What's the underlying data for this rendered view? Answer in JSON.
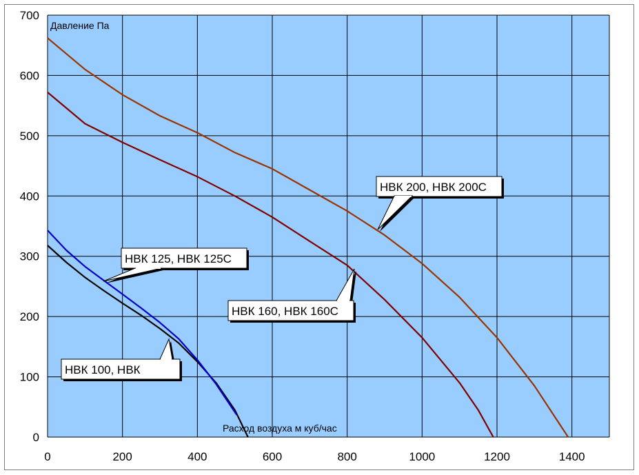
{
  "chart_data": {
    "type": "line",
    "title": "",
    "xlabel": "Расход воздуха м куб/час",
    "ylabel": "Давление Па",
    "xlim": [
      0,
      1500
    ],
    "ylim": [
      0,
      700
    ],
    "x_ticks": [
      "0",
      "200",
      "400",
      "600",
      "800",
      "1000",
      "1200",
      "1400"
    ],
    "y_ticks": [
      "0",
      "100",
      "200",
      "300",
      "400",
      "500",
      "600",
      "700"
    ],
    "grid": true,
    "legend": "callouts",
    "colors": {
      "plot_background": "#99ccff",
      "grid": "#000000"
    },
    "series": [
      {
        "name": "НВК 100, НВК",
        "color": "#000000",
        "points": [
          [
            0,
            318
          ],
          [
            50,
            290
          ],
          [
            100,
            265
          ],
          [
            150,
            243
          ],
          [
            200,
            222
          ],
          [
            250,
            202
          ],
          [
            300,
            180
          ],
          [
            350,
            156
          ],
          [
            400,
            125
          ],
          [
            450,
            90
          ],
          [
            500,
            45
          ],
          [
            535,
            0
          ]
        ]
      },
      {
        "name": "НВК 125, НВК 125С",
        "color": "#0000cc",
        "points": [
          [
            0,
            343
          ],
          [
            50,
            310
          ],
          [
            100,
            283
          ],
          [
            150,
            260
          ],
          [
            200,
            237
          ],
          [
            250,
            214
          ],
          [
            300,
            190
          ],
          [
            350,
            163
          ],
          [
            400,
            128
          ],
          [
            450,
            88
          ],
          [
            480,
            60
          ],
          [
            505,
            37
          ]
        ]
      },
      {
        "name": "НВК 160, НВК 160С",
        "color": "#800000",
        "points": [
          [
            0,
            572
          ],
          [
            100,
            520
          ],
          [
            200,
            489
          ],
          [
            300,
            460
          ],
          [
            400,
            432
          ],
          [
            500,
            400
          ],
          [
            600,
            365
          ],
          [
            700,
            325
          ],
          [
            800,
            285
          ],
          [
            900,
            228
          ],
          [
            1000,
            165
          ],
          [
            1100,
            90
          ],
          [
            1150,
            45
          ],
          [
            1190,
            0
          ]
        ]
      },
      {
        "name": "НВК 200, НВК 200С",
        "color": "#993300",
        "points": [
          [
            0,
            662
          ],
          [
            100,
            610
          ],
          [
            200,
            568
          ],
          [
            300,
            533
          ],
          [
            400,
            505
          ],
          [
            500,
            472
          ],
          [
            600,
            445
          ],
          [
            700,
            410
          ],
          [
            800,
            375
          ],
          [
            900,
            335
          ],
          [
            1000,
            288
          ],
          [
            1100,
            232
          ],
          [
            1200,
            165
          ],
          [
            1300,
            85
          ],
          [
            1390,
            0
          ]
        ]
      }
    ],
    "annotations": [
      {
        "text": "НВК 200, НВК 200С",
        "series": "НВК 200, НВК 200С"
      },
      {
        "text": "НВК 125, НВК 125С",
        "series": "НВК 125, НВК 125С"
      },
      {
        "text": "НВК 160, НВК 160С",
        "series": "НВК 160, НВК 160С"
      },
      {
        "text": "НВК 100, НВК",
        "series": "НВК 100, НВК"
      }
    ]
  }
}
